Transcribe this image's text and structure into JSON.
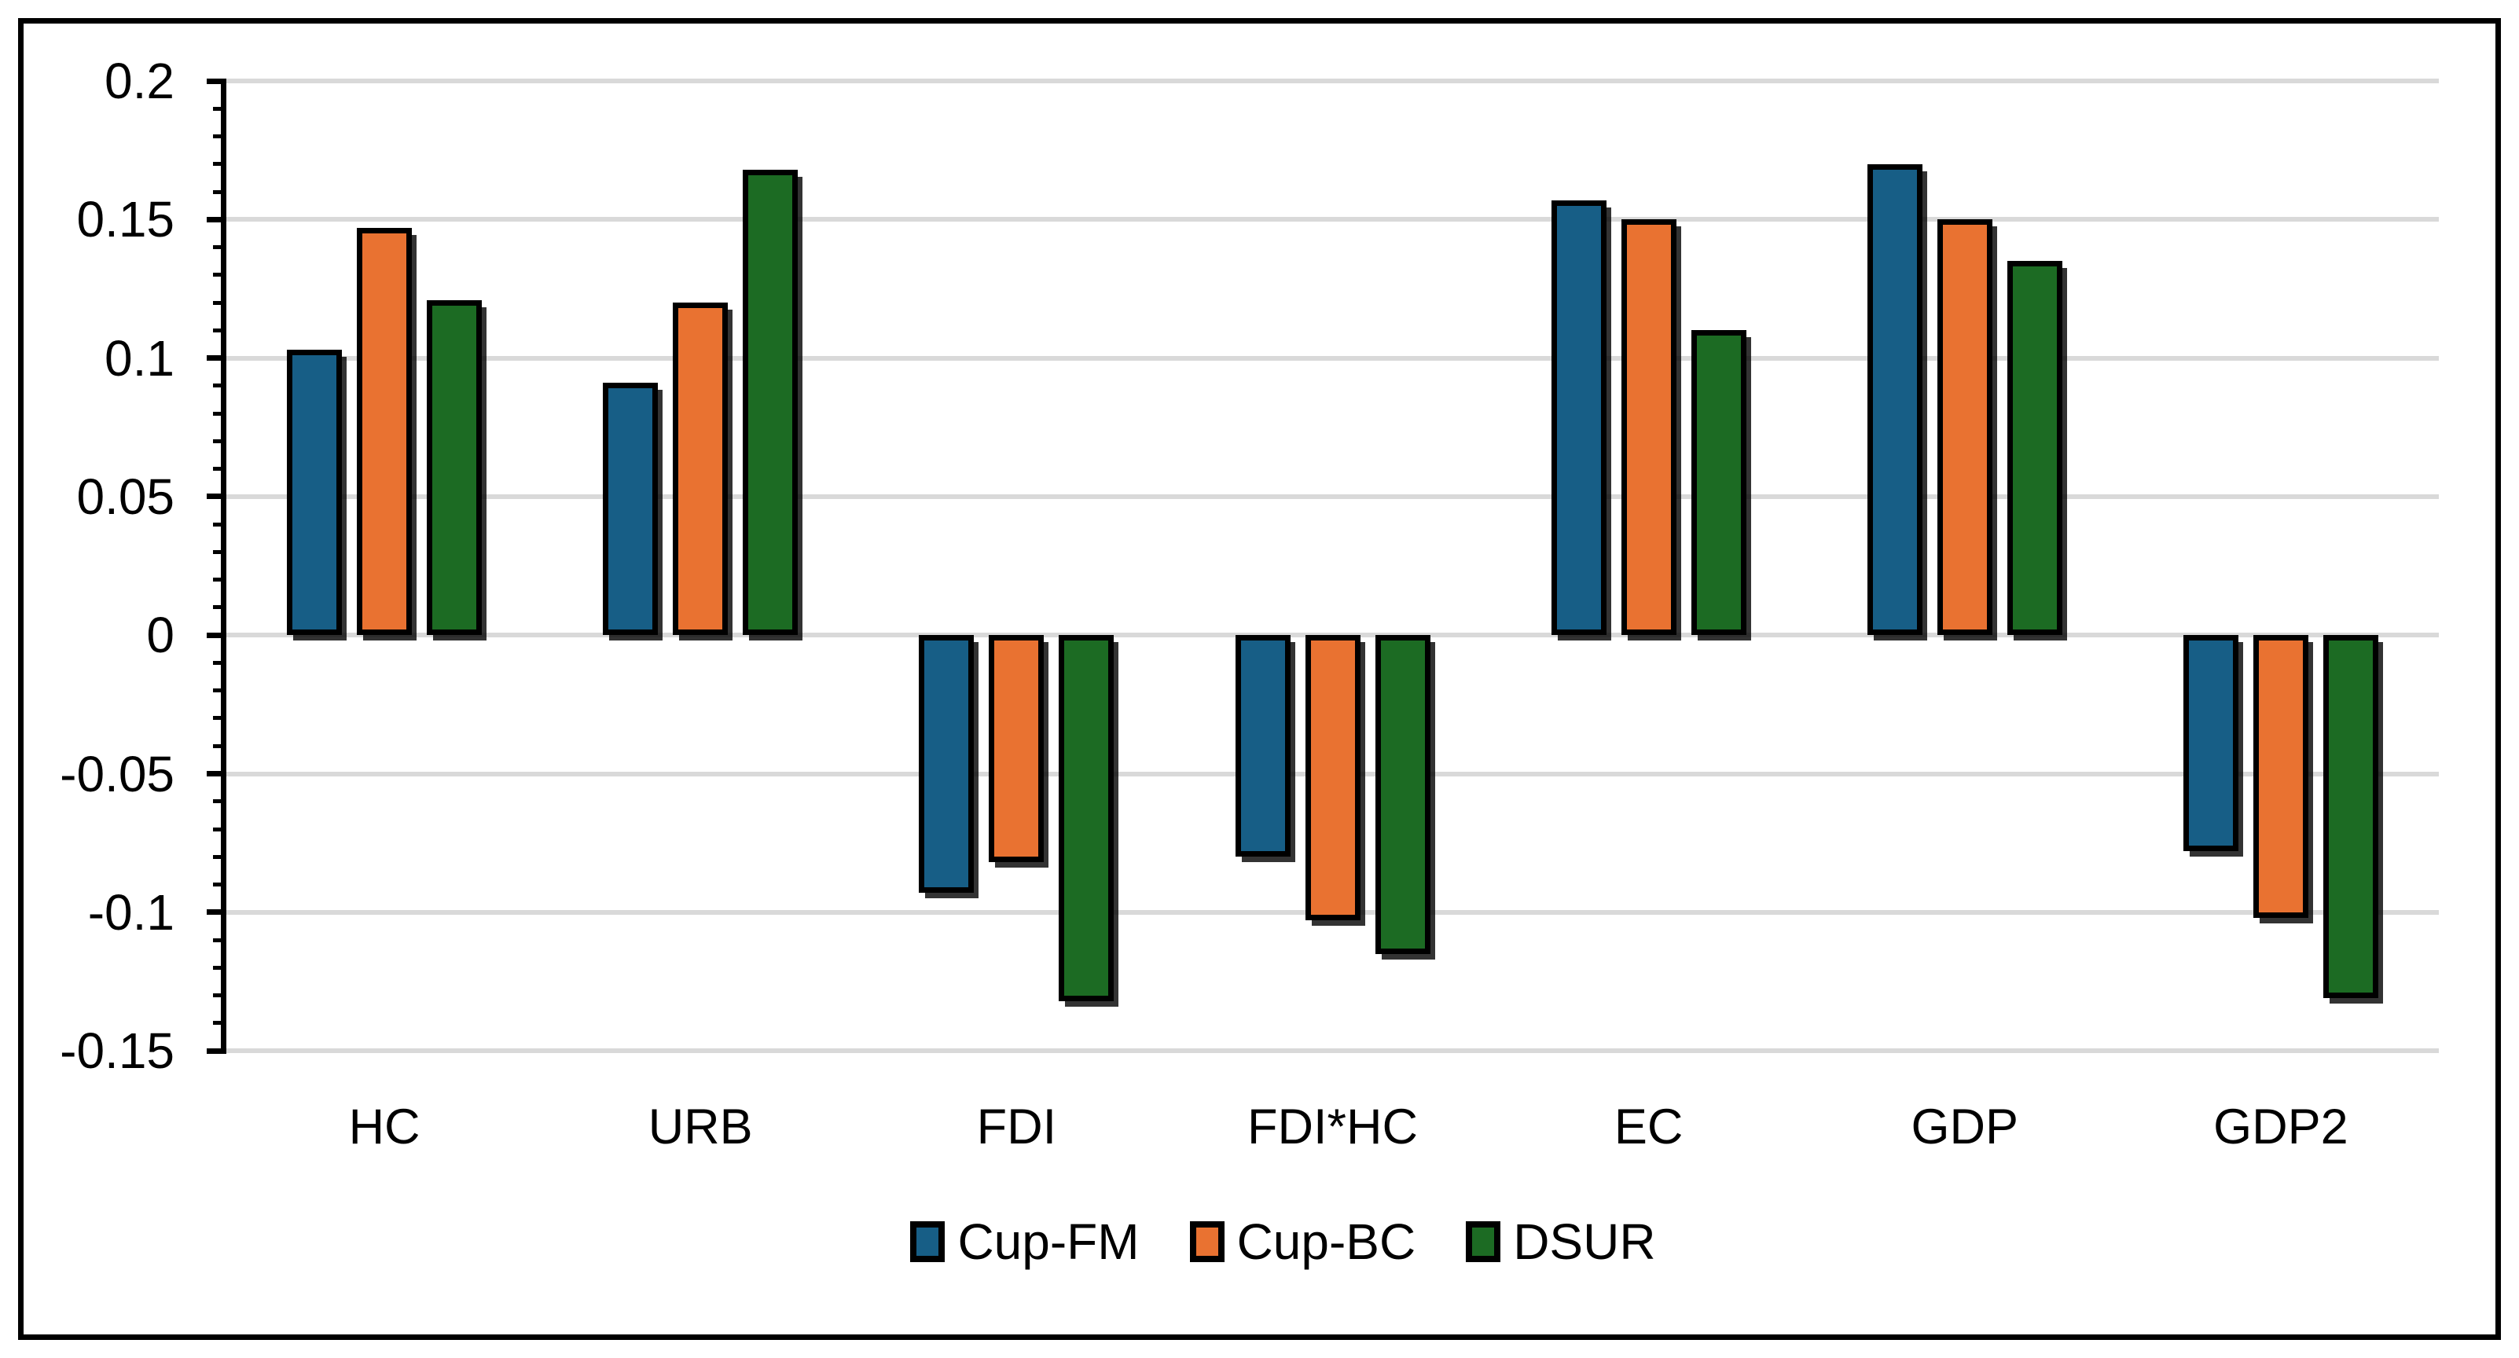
{
  "chart_data": {
    "type": "bar",
    "categories": [
      "HC",
      "URB",
      "FDI",
      "FDI*HC",
      "EC",
      "GDP",
      "GDP2"
    ],
    "series": [
      {
        "name": "Cup-FM",
        "color": "#175E86",
        "values": [
          0.103,
          0.091,
          -0.093,
          -0.08,
          0.157,
          0.17,
          -0.078
        ]
      },
      {
        "name": "Cup-BC",
        "color": "#E97231",
        "values": [
          0.147,
          0.12,
          -0.082,
          -0.103,
          0.15,
          0.15,
          -0.102
        ]
      },
      {
        "name": "DSUR",
        "color": "#1C6B23",
        "values": [
          0.121,
          0.168,
          -0.132,
          -0.115,
          0.11,
          0.135,
          -0.131
        ]
      }
    ],
    "title": "",
    "xlabel": "",
    "ylabel": "",
    "ylim": [
      -0.15,
      0.2
    ],
    "yticks": [
      0.2,
      0.15,
      0.1,
      0.05,
      0,
      -0.05,
      -0.1,
      -0.15
    ],
    "ytick_labels": [
      "0.2",
      "0.15",
      "0.1",
      "0.05",
      "0",
      "-0.05",
      "-0.1",
      "-0.15"
    ],
    "minor_tick_step": 0.01,
    "grid": true,
    "legend_position": "bottom",
    "colors": {
      "gridline": "#D9D9D9",
      "axis": "#000000",
      "frame": "#000000",
      "background": "#FFFFFF"
    }
  }
}
